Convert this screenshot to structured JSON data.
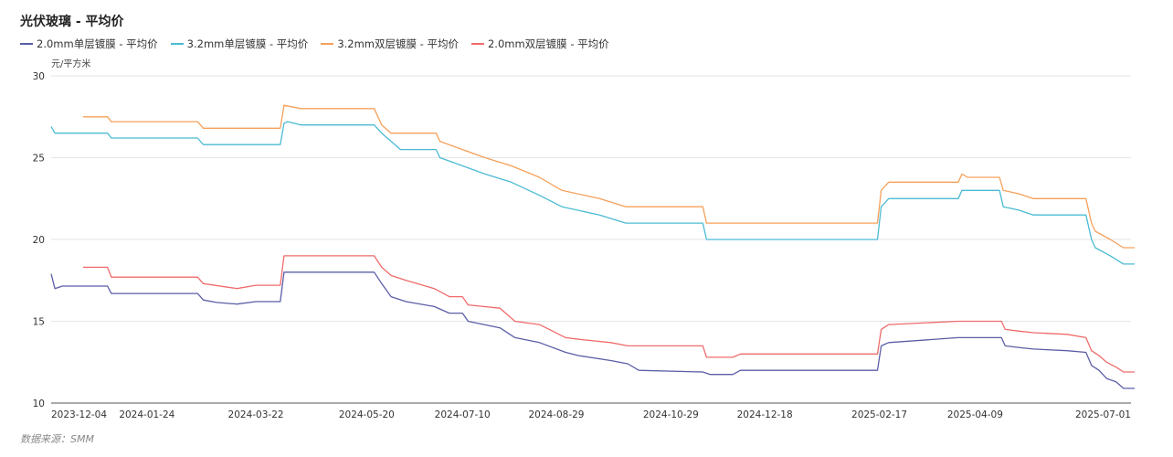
{
  "title": "光伏玻璃 - 平均价",
  "unit_label": "元/平方米",
  "source": "数据来源：SMM",
  "colors": {
    "s1": "#5b5ea6",
    "s2": "#4bbbd3",
    "s3": "#f5a05a",
    "s4": "#ef6b6b",
    "grid": "#e6e6e6",
    "axis": "#555555"
  },
  "chart_data": {
    "type": "line",
    "title": "光伏玻璃 - 平均价",
    "ylabel": "元/平方米",
    "ylim": [
      10,
      30
    ],
    "yticks": [
      10,
      15,
      20,
      25,
      30
    ],
    "xlim": [
      "2023-12-04",
      "2025-07-01"
    ],
    "xticks": [
      "2023-12-04",
      "2024-01-24",
      "2024-03-22",
      "2024-05-20",
      "2024-07-10",
      "2024-08-29",
      "2024-10-29",
      "2024-12-18",
      "2025-02-17",
      "2025-04-09",
      "2025-07-01"
    ],
    "grid": true,
    "legend_position": "top-left",
    "series": [
      {
        "name": "2.0mm单层镀膜 - 平均价",
        "points": [
          [
            "2023-12-04",
            17.9
          ],
          [
            "2023-12-06",
            17.0
          ],
          [
            "2023-12-10",
            17.15
          ],
          [
            "2024-01-03",
            17.15
          ],
          [
            "2024-01-05",
            16.7
          ],
          [
            "2024-02-20",
            16.7
          ],
          [
            "2024-02-23",
            16.3
          ],
          [
            "2024-03-01",
            16.15
          ],
          [
            "2024-03-12",
            16.05
          ],
          [
            "2024-03-22",
            16.2
          ],
          [
            "2024-04-04",
            16.2
          ],
          [
            "2024-04-06",
            18.0
          ],
          [
            "2024-05-24",
            18.0
          ],
          [
            "2024-05-28",
            17.3
          ],
          [
            "2024-06-02",
            16.5
          ],
          [
            "2024-06-10",
            16.2
          ],
          [
            "2024-06-25",
            15.9
          ],
          [
            "2024-07-03",
            15.5
          ],
          [
            "2024-07-10",
            15.5
          ],
          [
            "2024-07-13",
            15.0
          ],
          [
            "2024-07-30",
            14.6
          ],
          [
            "2024-08-07",
            14.0
          ],
          [
            "2024-08-20",
            13.7
          ],
          [
            "2024-09-03",
            13.1
          ],
          [
            "2024-09-10",
            12.9
          ],
          [
            "2024-09-27",
            12.6
          ],
          [
            "2024-10-06",
            12.4
          ],
          [
            "2024-10-12",
            12.0
          ],
          [
            "2024-11-15",
            11.9
          ],
          [
            "2024-11-19",
            11.75
          ],
          [
            "2024-12-01",
            11.75
          ],
          [
            "2024-12-05",
            12.0
          ],
          [
            "2025-02-16",
            12.0
          ],
          [
            "2025-02-18",
            13.5
          ],
          [
            "2025-02-22",
            13.7
          ],
          [
            "2025-03-31",
            14.0
          ],
          [
            "2025-04-23",
            14.0
          ],
          [
            "2025-04-25",
            13.5
          ],
          [
            "2025-05-02",
            13.4
          ],
          [
            "2025-05-10",
            13.3
          ],
          [
            "2025-05-28",
            13.2
          ],
          [
            "2025-06-07",
            13.1
          ],
          [
            "2025-06-10",
            12.3
          ],
          [
            "2025-06-14",
            12.0
          ],
          [
            "2025-06-18",
            11.5
          ],
          [
            "2025-06-23",
            11.3
          ],
          [
            "2025-06-27",
            10.9
          ],
          [
            "2025-07-03",
            10.9
          ]
        ]
      },
      {
        "name": "3.2mm单层镀膜 - 平均价",
        "points": [
          [
            "2023-12-04",
            26.9
          ],
          [
            "2023-12-06",
            26.5
          ],
          [
            "2024-01-03",
            26.5
          ],
          [
            "2024-01-05",
            26.2
          ],
          [
            "2024-02-20",
            26.2
          ],
          [
            "2024-02-23",
            25.8
          ],
          [
            "2024-04-04",
            25.8
          ],
          [
            "2024-04-06",
            27.1
          ],
          [
            "2024-04-08",
            27.2
          ],
          [
            "2024-04-15",
            27.0
          ],
          [
            "2024-05-24",
            27.0
          ],
          [
            "2024-05-28",
            26.5
          ],
          [
            "2024-06-02",
            26.0
          ],
          [
            "2024-06-07",
            25.5
          ],
          [
            "2024-06-26",
            25.5
          ],
          [
            "2024-06-28",
            25.0
          ],
          [
            "2024-07-10",
            24.5
          ],
          [
            "2024-07-22",
            24.0
          ],
          [
            "2024-08-05",
            23.5
          ],
          [
            "2024-08-20",
            22.7
          ],
          [
            "2024-09-01",
            22.0
          ],
          [
            "2024-09-21",
            21.5
          ],
          [
            "2024-10-05",
            21.0
          ],
          [
            "2024-11-15",
            21.0
          ],
          [
            "2024-11-17",
            20.0
          ],
          [
            "2025-02-16",
            20.0
          ],
          [
            "2025-02-18",
            22.0
          ],
          [
            "2025-02-22",
            22.5
          ],
          [
            "2025-03-31",
            22.5
          ],
          [
            "2025-04-02",
            23.0
          ],
          [
            "2025-04-22",
            23.0
          ],
          [
            "2025-04-24",
            22.0
          ],
          [
            "2025-05-02",
            21.8
          ],
          [
            "2025-05-10",
            21.5
          ],
          [
            "2025-06-07",
            21.5
          ],
          [
            "2025-06-10",
            20.0
          ],
          [
            "2025-06-12",
            19.5
          ],
          [
            "2025-06-20",
            19.0
          ],
          [
            "2025-06-27",
            18.5
          ],
          [
            "2025-07-03",
            18.5
          ]
        ]
      },
      {
        "name": "3.2mm双层镀膜 - 平均价",
        "points": [
          [
            "2023-12-21",
            27.5
          ],
          [
            "2024-01-03",
            27.5
          ],
          [
            "2024-01-05",
            27.2
          ],
          [
            "2024-02-20",
            27.2
          ],
          [
            "2024-02-23",
            26.8
          ],
          [
            "2024-04-04",
            26.8
          ],
          [
            "2024-04-06",
            28.2
          ],
          [
            "2024-04-15",
            28.0
          ],
          [
            "2024-05-24",
            28.0
          ],
          [
            "2024-05-28",
            27.0
          ],
          [
            "2024-06-02",
            26.5
          ],
          [
            "2024-06-26",
            26.5
          ],
          [
            "2024-06-28",
            26.0
          ],
          [
            "2024-07-10",
            25.5
          ],
          [
            "2024-07-22",
            25.0
          ],
          [
            "2024-08-05",
            24.5
          ],
          [
            "2024-08-20",
            23.8
          ],
          [
            "2024-09-01",
            23.0
          ],
          [
            "2024-09-21",
            22.5
          ],
          [
            "2024-10-05",
            22.0
          ],
          [
            "2024-11-15",
            22.0
          ],
          [
            "2024-11-17",
            21.0
          ],
          [
            "2025-02-16",
            21.0
          ],
          [
            "2025-02-18",
            23.0
          ],
          [
            "2025-02-22",
            23.5
          ],
          [
            "2025-03-31",
            23.5
          ],
          [
            "2025-04-02",
            24.0
          ],
          [
            "2025-04-05",
            23.8
          ],
          [
            "2025-04-22",
            23.8
          ],
          [
            "2025-04-24",
            23.0
          ],
          [
            "2025-05-02",
            22.8
          ],
          [
            "2025-05-10",
            22.5
          ],
          [
            "2025-06-07",
            22.5
          ],
          [
            "2025-06-10",
            21.0
          ],
          [
            "2025-06-12",
            20.5
          ],
          [
            "2025-06-20",
            20.0
          ],
          [
            "2025-06-27",
            19.5
          ],
          [
            "2025-07-03",
            19.5
          ]
        ]
      },
      {
        "name": "2.0mm双层镀膜 - 平均价",
        "points": [
          [
            "2023-12-21",
            18.3
          ],
          [
            "2024-01-03",
            18.3
          ],
          [
            "2024-01-05",
            17.7
          ],
          [
            "2024-02-20",
            17.7
          ],
          [
            "2024-02-23",
            17.3
          ],
          [
            "2024-03-12",
            17.0
          ],
          [
            "2024-03-22",
            17.2
          ],
          [
            "2024-04-04",
            17.2
          ],
          [
            "2024-04-06",
            19.0
          ],
          [
            "2024-05-24",
            19.0
          ],
          [
            "2024-05-28",
            18.3
          ],
          [
            "2024-06-02",
            17.8
          ],
          [
            "2024-06-10",
            17.5
          ],
          [
            "2024-06-25",
            17.0
          ],
          [
            "2024-07-03",
            16.5
          ],
          [
            "2024-07-10",
            16.5
          ],
          [
            "2024-07-13",
            16.0
          ],
          [
            "2024-07-30",
            15.8
          ],
          [
            "2024-08-07",
            15.0
          ],
          [
            "2024-08-20",
            14.8
          ],
          [
            "2024-09-03",
            14.0
          ],
          [
            "2024-09-10",
            13.9
          ],
          [
            "2024-09-27",
            13.7
          ],
          [
            "2024-10-06",
            13.5
          ],
          [
            "2024-11-15",
            13.5
          ],
          [
            "2024-11-17",
            12.8
          ],
          [
            "2024-12-01",
            12.8
          ],
          [
            "2024-12-05",
            13.0
          ],
          [
            "2025-02-16",
            13.0
          ],
          [
            "2025-02-18",
            14.5
          ],
          [
            "2025-02-22",
            14.8
          ],
          [
            "2025-03-31",
            15.0
          ],
          [
            "2025-04-23",
            15.0
          ],
          [
            "2025-04-25",
            14.5
          ],
          [
            "2025-05-02",
            14.4
          ],
          [
            "2025-05-10",
            14.3
          ],
          [
            "2025-05-28",
            14.2
          ],
          [
            "2025-06-07",
            14.0
          ],
          [
            "2025-06-10",
            13.2
          ],
          [
            "2025-06-14",
            12.9
          ],
          [
            "2025-06-18",
            12.5
          ],
          [
            "2025-06-23",
            12.2
          ],
          [
            "2025-06-27",
            11.9
          ],
          [
            "2025-07-03",
            11.9
          ]
        ]
      }
    ]
  }
}
